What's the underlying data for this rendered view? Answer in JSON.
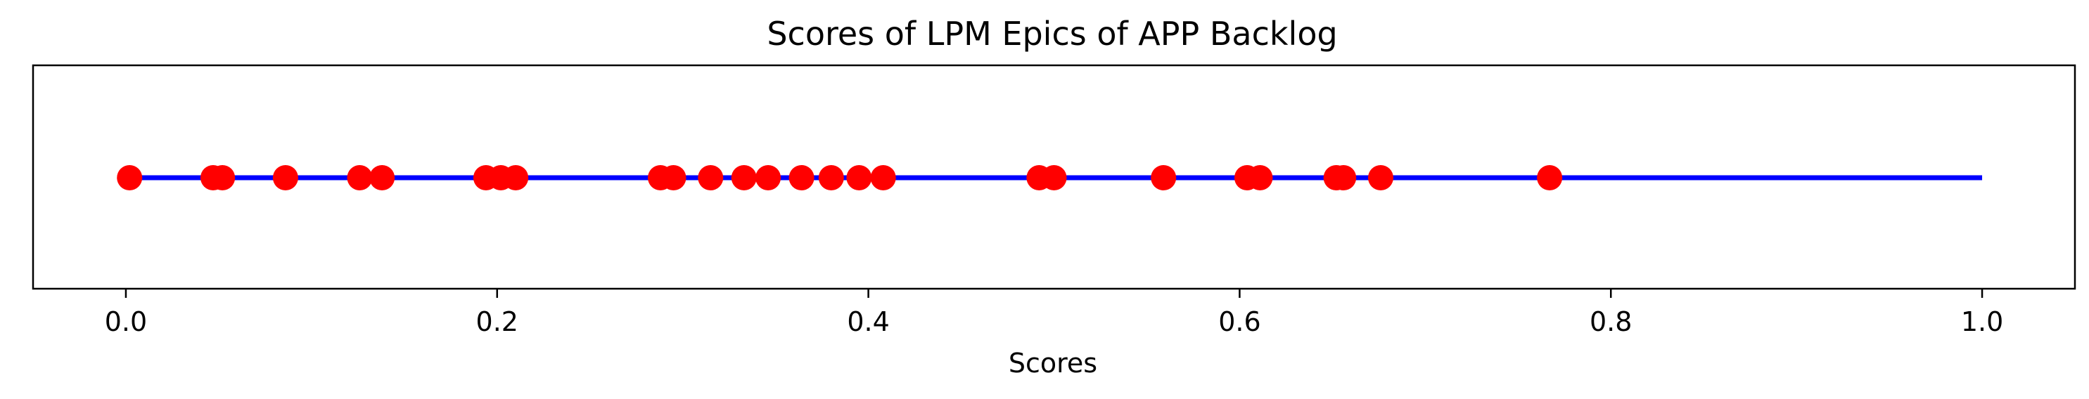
{
  "chart_data": {
    "type": "scatter",
    "title": "Scores of LPM Epics of APP Backlog",
    "xlabel": "Scores",
    "ylabel": "",
    "xlim": [
      -0.05,
      1.05
    ],
    "xticks": [
      0.0,
      0.2,
      0.4,
      0.6,
      0.8,
      1.0
    ],
    "xtick_labels": [
      "0.0",
      "0.2",
      "0.4",
      "0.6",
      "0.8",
      "1.0"
    ],
    "grid": false,
    "legend": "none",
    "line": {
      "x": [
        0.0,
        1.0
      ],
      "color": "#0000ff"
    },
    "points": {
      "color": "#ff0000",
      "x": [
        0.002,
        0.047,
        0.052,
        0.086,
        0.126,
        0.138,
        0.194,
        0.202,
        0.21,
        0.288,
        0.295,
        0.315,
        0.333,
        0.346,
        0.364,
        0.38,
        0.395,
        0.408,
        0.492,
        0.5,
        0.559,
        0.604,
        0.611,
        0.652,
        0.656,
        0.676,
        0.767
      ]
    }
  }
}
